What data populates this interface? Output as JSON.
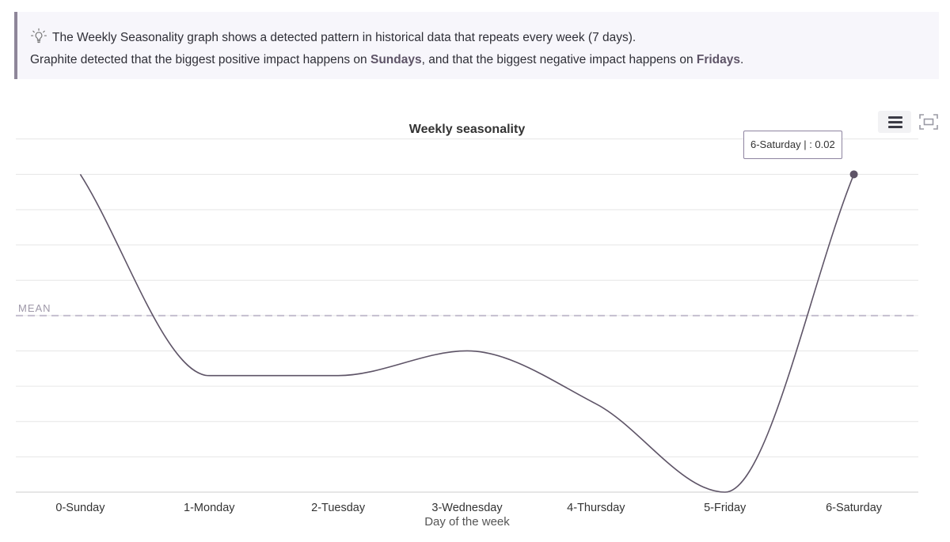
{
  "info": {
    "line1": "The Weekly Seasonality graph shows a detected pattern in historical data that repeats every week (7 days).",
    "line2_before": "Graphite detected that the biggest positive impact happens on ",
    "line2_positive": "Sundays",
    "line2_middle": ", and that the biggest negative impact happens on ",
    "line2_negative": "Fridays",
    "line2_after": ".",
    "icon": "lightbulb-icon"
  },
  "toolbar": {
    "menu_icon": "hamburger-menu-icon",
    "fullscreen_icon": "fullscreen-icon"
  },
  "tooltip": {
    "text": "6-Saturday | : 0.02"
  },
  "chart_data": {
    "type": "line",
    "title": "Weekly seasonality",
    "xlabel": "Day of the week",
    "ylabel": "",
    "categories": [
      "0-Sunday",
      "1-Monday",
      "2-Tuesday",
      "3-Wednesday",
      "4-Thursday",
      "5-Friday",
      "6-Saturday"
    ],
    "series": [
      {
        "values": [
          0.02,
          -0.0085,
          -0.0085,
          -0.005,
          -0.0125,
          -0.025,
          0.02
        ],
        "color": "#5e5467"
      }
    ],
    "ylim": [
      -0.025,
      0.0225
    ],
    "y_tick_step": 0.005,
    "y_tick_labels_visible": false,
    "grid": true,
    "mean_line": {
      "label": "MEAN",
      "value": 0
    },
    "highlight": {
      "category": "6-Saturday",
      "value": 0.02
    }
  },
  "colors": {
    "line": "#5e5467",
    "mean": "#c5bfcf",
    "grid": "#e6e6e6",
    "axis": "#cccccc",
    "info_bg": "#f7f6fb",
    "info_border": "#8e8699"
  }
}
